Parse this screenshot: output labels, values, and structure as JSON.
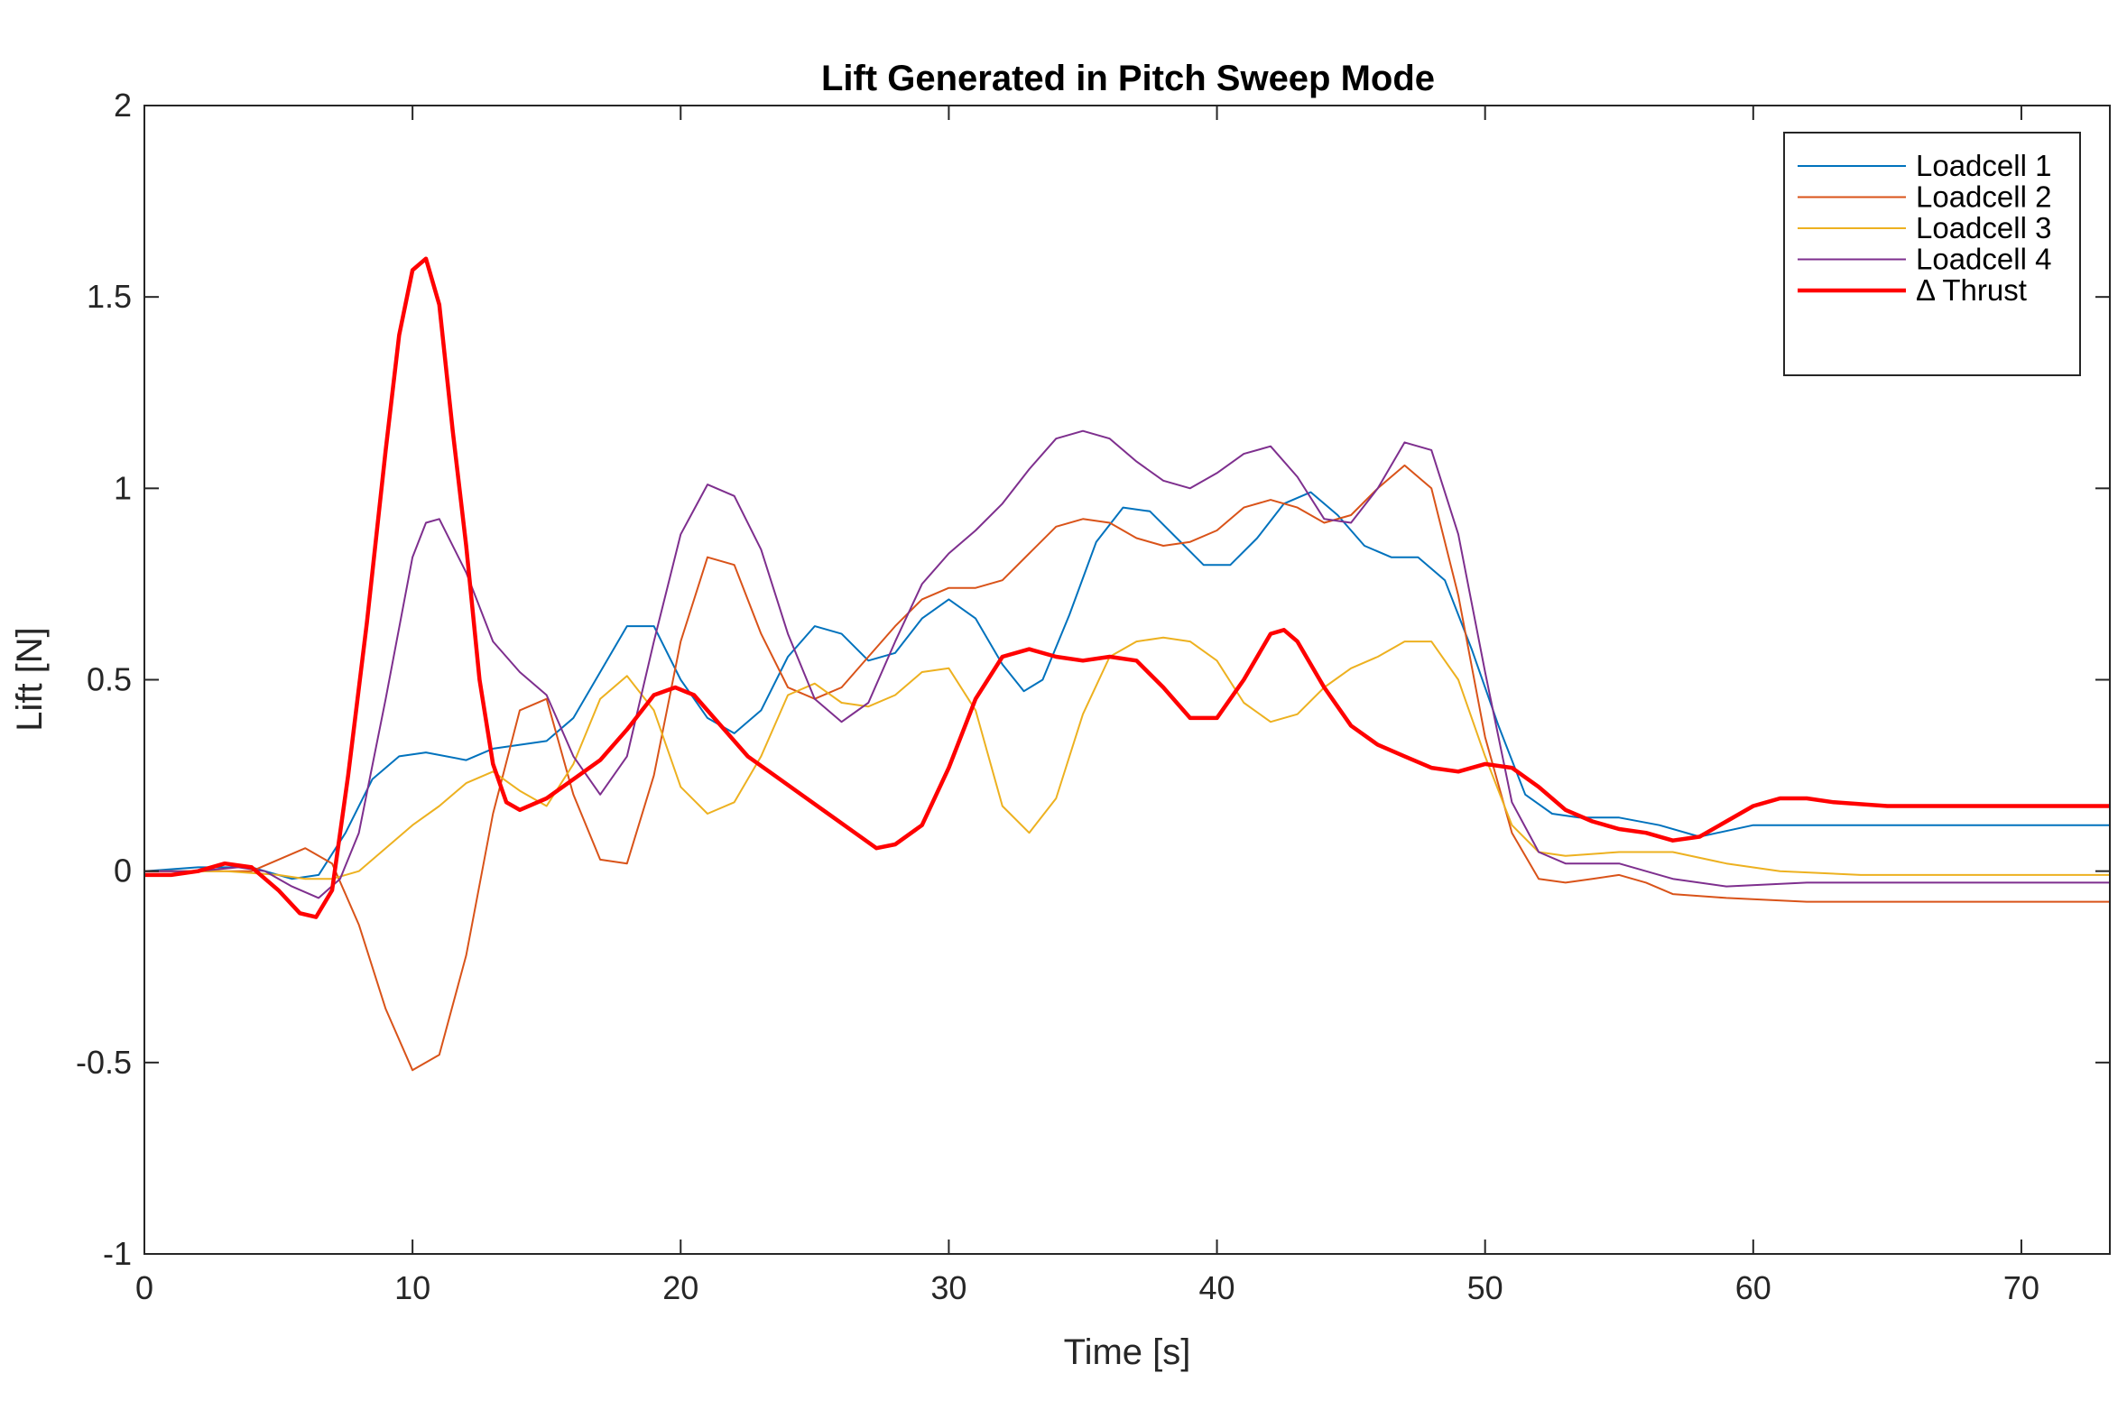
{
  "chart_data": {
    "type": "line",
    "title": "Lift Generated in Pitch Sweep Mode",
    "xlabel": "Time [s]",
    "ylabel": "Lift [N]",
    "xlim": [
      0,
      73.3
    ],
    "ylim": [
      -1,
      2
    ],
    "xticks": [
      0,
      10,
      20,
      30,
      40,
      50,
      60,
      70
    ],
    "yticks": [
      -1,
      -0.5,
      0,
      0.5,
      1,
      1.5,
      2
    ],
    "xtick_labels": [
      "0",
      "10",
      "20",
      "30",
      "40",
      "50",
      "60",
      "70"
    ],
    "ytick_labels": [
      "-1",
      "-0.5",
      "0",
      "0.5",
      "1",
      "1.5",
      "2"
    ],
    "grid": false,
    "legend_position": "top-right",
    "series": [
      {
        "name": "Loadcell 1",
        "color": "#0072BD",
        "line_width": 2,
        "points": [
          [
            0,
            0
          ],
          [
            2,
            0.01
          ],
          [
            4,
            0.01
          ],
          [
            5.5,
            -0.02
          ],
          [
            6.5,
            -0.01
          ],
          [
            7.5,
            0.1
          ],
          [
            8.5,
            0.24
          ],
          [
            9.5,
            0.3
          ],
          [
            10.5,
            0.31
          ],
          [
            12,
            0.29
          ],
          [
            13,
            0.32
          ],
          [
            14,
            0.33
          ],
          [
            15,
            0.34
          ],
          [
            16,
            0.4
          ],
          [
            17,
            0.52
          ],
          [
            18,
            0.64
          ],
          [
            19,
            0.64
          ],
          [
            20,
            0.5
          ],
          [
            21,
            0.4
          ],
          [
            22,
            0.36
          ],
          [
            23,
            0.42
          ],
          [
            24,
            0.56
          ],
          [
            25,
            0.64
          ],
          [
            26,
            0.62
          ],
          [
            27,
            0.55
          ],
          [
            28,
            0.57
          ],
          [
            29,
            0.66
          ],
          [
            30,
            0.71
          ],
          [
            31,
            0.66
          ],
          [
            32,
            0.54
          ],
          [
            32.8,
            0.47
          ],
          [
            33.5,
            0.5
          ],
          [
            34.5,
            0.67
          ],
          [
            35.5,
            0.86
          ],
          [
            36.5,
            0.95
          ],
          [
            37.5,
            0.94
          ],
          [
            38.5,
            0.87
          ],
          [
            39.5,
            0.8
          ],
          [
            40.5,
            0.8
          ],
          [
            41.5,
            0.87
          ],
          [
            42.5,
            0.96
          ],
          [
            43.5,
            0.99
          ],
          [
            44.5,
            0.93
          ],
          [
            45.5,
            0.85
          ],
          [
            46.5,
            0.82
          ],
          [
            47.5,
            0.82
          ],
          [
            48.5,
            0.76
          ],
          [
            49.5,
            0.58
          ],
          [
            50.5,
            0.38
          ],
          [
            51.5,
            0.2
          ],
          [
            52.5,
            0.15
          ],
          [
            53.5,
            0.14
          ],
          [
            55,
            0.14
          ],
          [
            56.5,
            0.12
          ],
          [
            58,
            0.09
          ],
          [
            60,
            0.12
          ],
          [
            62,
            0.12
          ],
          [
            64,
            0.12
          ],
          [
            73.3,
            0.12
          ]
        ]
      },
      {
        "name": "Loadcell 2",
        "color": "#D95319",
        "line_width": 2,
        "points": [
          [
            0,
            0
          ],
          [
            2,
            0
          ],
          [
            4,
            0
          ],
          [
            5,
            0.03
          ],
          [
            6,
            0.06
          ],
          [
            7,
            0.02
          ],
          [
            8,
            -0.14
          ],
          [
            9,
            -0.36
          ],
          [
            10,
            -0.52
          ],
          [
            11,
            -0.48
          ],
          [
            12,
            -0.22
          ],
          [
            13,
            0.15
          ],
          [
            14,
            0.42
          ],
          [
            15,
            0.45
          ],
          [
            16,
            0.2
          ],
          [
            17,
            0.03
          ],
          [
            18,
            0.02
          ],
          [
            19,
            0.25
          ],
          [
            20,
            0.6
          ],
          [
            21,
            0.82
          ],
          [
            22,
            0.8
          ],
          [
            23,
            0.62
          ],
          [
            24,
            0.48
          ],
          [
            25,
            0.45
          ],
          [
            26,
            0.48
          ],
          [
            27,
            0.56
          ],
          [
            28,
            0.64
          ],
          [
            29,
            0.71
          ],
          [
            30,
            0.74
          ],
          [
            31,
            0.74
          ],
          [
            32,
            0.76
          ],
          [
            33,
            0.83
          ],
          [
            34,
            0.9
          ],
          [
            35,
            0.92
          ],
          [
            36,
            0.91
          ],
          [
            37,
            0.87
          ],
          [
            38,
            0.85
          ],
          [
            39,
            0.86
          ],
          [
            40,
            0.89
          ],
          [
            41,
            0.95
          ],
          [
            42,
            0.97
          ],
          [
            43,
            0.95
          ],
          [
            44,
            0.91
          ],
          [
            45,
            0.93
          ],
          [
            46,
            1.0
          ],
          [
            47,
            1.06
          ],
          [
            48,
            1.0
          ],
          [
            49,
            0.72
          ],
          [
            50,
            0.35
          ],
          [
            51,
            0.1
          ],
          [
            52,
            -0.02
          ],
          [
            53,
            -0.03
          ],
          [
            54,
            -0.02
          ],
          [
            55,
            -0.01
          ],
          [
            56,
            -0.03
          ],
          [
            57,
            -0.06
          ],
          [
            59,
            -0.07
          ],
          [
            62,
            -0.08
          ],
          [
            65,
            -0.08
          ],
          [
            68,
            -0.08
          ],
          [
            73.3,
            -0.08
          ]
        ]
      },
      {
        "name": "Loadcell 3",
        "color": "#EDB120",
        "line_width": 2,
        "points": [
          [
            0,
            0
          ],
          [
            3,
            0
          ],
          [
            5,
            -0.01
          ],
          [
            6,
            -0.02
          ],
          [
            7,
            -0.02
          ],
          [
            8,
            0.0
          ],
          [
            9,
            0.06
          ],
          [
            10,
            0.12
          ],
          [
            11,
            0.17
          ],
          [
            12,
            0.23
          ],
          [
            13,
            0.26
          ],
          [
            14,
            0.21
          ],
          [
            15,
            0.17
          ],
          [
            16,
            0.28
          ],
          [
            17,
            0.45
          ],
          [
            18,
            0.51
          ],
          [
            19,
            0.42
          ],
          [
            20,
            0.22
          ],
          [
            21,
            0.15
          ],
          [
            22,
            0.18
          ],
          [
            23,
            0.3
          ],
          [
            24,
            0.46
          ],
          [
            25,
            0.49
          ],
          [
            26,
            0.44
          ],
          [
            27,
            0.43
          ],
          [
            28,
            0.46
          ],
          [
            29,
            0.52
          ],
          [
            30,
            0.53
          ],
          [
            31,
            0.42
          ],
          [
            32,
            0.17
          ],
          [
            33,
            0.1
          ],
          [
            34,
            0.19
          ],
          [
            35,
            0.41
          ],
          [
            36,
            0.56
          ],
          [
            37,
            0.6
          ],
          [
            38,
            0.61
          ],
          [
            39,
            0.6
          ],
          [
            40,
            0.55
          ],
          [
            41,
            0.44
          ],
          [
            42,
            0.39
          ],
          [
            43,
            0.41
          ],
          [
            44,
            0.48
          ],
          [
            45,
            0.53
          ],
          [
            46,
            0.56
          ],
          [
            47,
            0.6
          ],
          [
            48,
            0.6
          ],
          [
            49,
            0.5
          ],
          [
            50,
            0.3
          ],
          [
            51,
            0.12
          ],
          [
            52,
            0.05
          ],
          [
            53,
            0.04
          ],
          [
            55,
            0.05
          ],
          [
            57,
            0.05
          ],
          [
            59,
            0.02
          ],
          [
            61,
            0.0
          ],
          [
            64,
            -0.01
          ],
          [
            68,
            -0.01
          ],
          [
            73.3,
            -0.01
          ]
        ]
      },
      {
        "name": "Loadcell 4",
        "color": "#7E2F8E",
        "line_width": 2,
        "points": [
          [
            0,
            0
          ],
          [
            2,
            0
          ],
          [
            3.5,
            0.01
          ],
          [
            4.5,
            0.0
          ],
          [
            5.5,
            -0.04
          ],
          [
            6.5,
            -0.07
          ],
          [
            7.3,
            -0.02
          ],
          [
            8,
            0.1
          ],
          [
            9,
            0.45
          ],
          [
            10,
            0.82
          ],
          [
            10.5,
            0.91
          ],
          [
            11,
            0.92
          ],
          [
            12,
            0.78
          ],
          [
            13,
            0.6
          ],
          [
            14,
            0.52
          ],
          [
            15,
            0.46
          ],
          [
            16,
            0.3
          ],
          [
            17,
            0.2
          ],
          [
            18,
            0.3
          ],
          [
            19,
            0.6
          ],
          [
            20,
            0.88
          ],
          [
            21,
            1.01
          ],
          [
            22,
            0.98
          ],
          [
            23,
            0.84
          ],
          [
            24,
            0.62
          ],
          [
            25,
            0.45
          ],
          [
            26,
            0.39
          ],
          [
            27,
            0.44
          ],
          [
            28,
            0.6
          ],
          [
            29,
            0.75
          ],
          [
            30,
            0.83
          ],
          [
            31,
            0.89
          ],
          [
            32,
            0.96
          ],
          [
            33,
            1.05
          ],
          [
            34,
            1.13
          ],
          [
            35,
            1.15
          ],
          [
            36,
            1.13
          ],
          [
            37,
            1.07
          ],
          [
            38,
            1.02
          ],
          [
            39,
            1.0
          ],
          [
            40,
            1.04
          ],
          [
            41,
            1.09
          ],
          [
            42,
            1.11
          ],
          [
            43,
            1.03
          ],
          [
            44,
            0.92
          ],
          [
            45,
            0.91
          ],
          [
            46,
            1.0
          ],
          [
            47,
            1.12
          ],
          [
            48,
            1.1
          ],
          [
            49,
            0.88
          ],
          [
            50,
            0.52
          ],
          [
            51,
            0.18
          ],
          [
            52,
            0.05
          ],
          [
            53,
            0.02
          ],
          [
            55,
            0.02
          ],
          [
            57,
            -0.02
          ],
          [
            59,
            -0.04
          ],
          [
            62,
            -0.03
          ],
          [
            65,
            -0.03
          ],
          [
            68,
            -0.03
          ],
          [
            73.3,
            -0.03
          ]
        ]
      },
      {
        "name": "Δ Thrust",
        "color": "#FF0000",
        "line_width": 4.5,
        "points": [
          [
            0,
            -0.01
          ],
          [
            1,
            -0.01
          ],
          [
            2,
            0.0
          ],
          [
            3,
            0.02
          ],
          [
            4,
            0.01
          ],
          [
            5,
            -0.05
          ],
          [
            5.8,
            -0.11
          ],
          [
            6.4,
            -0.12
          ],
          [
            7,
            -0.05
          ],
          [
            7.6,
            0.25
          ],
          [
            8.3,
            0.65
          ],
          [
            9,
            1.1
          ],
          [
            9.5,
            1.4
          ],
          [
            10,
            1.57
          ],
          [
            10.5,
            1.6
          ],
          [
            11,
            1.48
          ],
          [
            11.5,
            1.15
          ],
          [
            12,
            0.85
          ],
          [
            12.5,
            0.5
          ],
          [
            13,
            0.28
          ],
          [
            13.5,
            0.18
          ],
          [
            14,
            0.16
          ],
          [
            15,
            0.19
          ],
          [
            16,
            0.24
          ],
          [
            17,
            0.29
          ],
          [
            18,
            0.37
          ],
          [
            19,
            0.46
          ],
          [
            19.8,
            0.48
          ],
          [
            20.5,
            0.46
          ],
          [
            21.5,
            0.38
          ],
          [
            22.5,
            0.3
          ],
          [
            23.5,
            0.25
          ],
          [
            24.5,
            0.2
          ],
          [
            25.5,
            0.15
          ],
          [
            26.5,
            0.1
          ],
          [
            27.3,
            0.06
          ],
          [
            28,
            0.07
          ],
          [
            29,
            0.12
          ],
          [
            30,
            0.27
          ],
          [
            31,
            0.45
          ],
          [
            32,
            0.56
          ],
          [
            33,
            0.58
          ],
          [
            34,
            0.56
          ],
          [
            35,
            0.55
          ],
          [
            36,
            0.56
          ],
          [
            37,
            0.55
          ],
          [
            38,
            0.48
          ],
          [
            39,
            0.4
          ],
          [
            40,
            0.4
          ],
          [
            41,
            0.5
          ],
          [
            42,
            0.62
          ],
          [
            42.5,
            0.63
          ],
          [
            43,
            0.6
          ],
          [
            44,
            0.48
          ],
          [
            45,
            0.38
          ],
          [
            46,
            0.33
          ],
          [
            47,
            0.3
          ],
          [
            48,
            0.27
          ],
          [
            49,
            0.26
          ],
          [
            50,
            0.28
          ],
          [
            51,
            0.27
          ],
          [
            52,
            0.22
          ],
          [
            53,
            0.16
          ],
          [
            54,
            0.13
          ],
          [
            55,
            0.11
          ],
          [
            56,
            0.1
          ],
          [
            57,
            0.08
          ],
          [
            58,
            0.09
          ],
          [
            59,
            0.13
          ],
          [
            60,
            0.17
          ],
          [
            61,
            0.19
          ],
          [
            62,
            0.19
          ],
          [
            63,
            0.18
          ],
          [
            65,
            0.17
          ],
          [
            68,
            0.17
          ],
          [
            73.3,
            0.17
          ]
        ]
      }
    ]
  }
}
